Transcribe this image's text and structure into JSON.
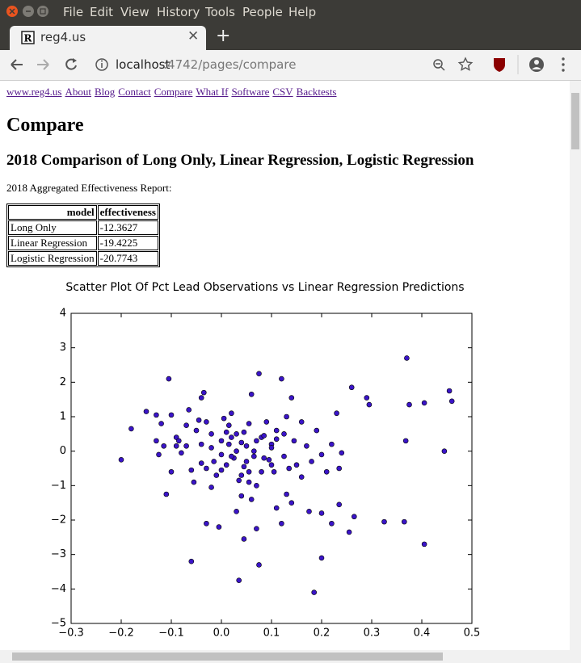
{
  "browser": {
    "menu": [
      "File",
      "Edit",
      "View",
      "History",
      "Tools",
      "People",
      "Help"
    ],
    "tab_title": "reg4.us",
    "url_host": "localhost",
    "url_path": ":4742/pages/compare"
  },
  "nav": [
    "www.reg4.us",
    "About",
    "Blog",
    "Contact",
    "Compare",
    "What If",
    "Software",
    "CSV",
    "Backtests"
  ],
  "heading": "Compare",
  "subheading": "2018 Comparison of Long Only, Linear Regression, Logistic Regression",
  "report_label": "2018 Aggregated Effectiveness Report:",
  "table": {
    "header": [
      "model",
      "effectiveness"
    ],
    "rows": [
      [
        "Long Only",
        -12.3627
      ],
      [
        "Linear Regression",
        -19.4225
      ],
      [
        "Logistic Regression",
        -20.7743
      ]
    ]
  },
  "chart_data": {
    "type": "scatter",
    "title": "Scatter Plot Of Pct Lead Observations vs Linear Regression Predictions",
    "color": "#3a14c8",
    "x": [
      -0.2,
      -0.18,
      -0.15,
      -0.13,
      -0.12,
      -0.105,
      -0.1,
      -0.11,
      -0.1,
      -0.09,
      -0.08,
      -0.07,
      -0.065,
      -0.06,
      -0.055,
      -0.05,
      -0.045,
      -0.04,
      -0.035,
      -0.03,
      -0.03,
      -0.02,
      -0.02,
      -0.015,
      -0.01,
      0,
      0,
      0.005,
      0.01,
      0.015,
      0.02,
      0.025,
      0.03,
      0.035,
      0.04,
      0.045,
      0.05,
      0.055,
      0.06,
      0.065,
      0.07,
      0.075,
      0.08,
      0.085,
      0.09,
      0.1,
      0.105,
      0.11,
      0.12,
      0.125,
      0.13,
      0.14,
      0.145,
      0.15,
      0.16,
      0.17,
      0.18,
      0.19,
      0.2,
      0.21,
      0.22,
      0.23,
      0.24,
      0.26,
      0.29,
      0.295,
      0.37,
      0.375,
      0.405,
      0.455,
      0.46,
      0.445,
      0.368,
      0.235,
      -0.06,
      -0.03,
      -0.005,
      0.035,
      0.045,
      0.075,
      0.07,
      0.11,
      0.12,
      0.13,
      0.14,
      0.175,
      0.2,
      0.22,
      0.235,
      0.255,
      0.265,
      0.325,
      0.365,
      0.405,
      0.2,
      0.185,
      0.03,
      0.04,
      0.06,
      0.055,
      -0.02,
      -0.09,
      -0.125,
      -0.13,
      -0.115,
      -0.085,
      -0.07,
      -0.04,
      0.01,
      0.02,
      0.045,
      0.07,
      0.085,
      0.095,
      0.11,
      0.125,
      0.135,
      0.16,
      0.04,
      0,
      -0.04,
      0.015,
      0.055,
      0.08,
      0.1,
      0.1,
      0.02,
      0.03,
      0.05,
      0.065
    ],
    "values": [
      -0.25,
      0.65,
      1.15,
      1.05,
      0.8,
      2.1,
      1.05,
      -1.25,
      -0.6,
      0.4,
      -0.05,
      0.75,
      1.2,
      -0.55,
      -0.9,
      0.6,
      0.9,
      1.55,
      1.7,
      0.85,
      -0.5,
      0.5,
      0.1,
      -0.3,
      -0.7,
      0.3,
      -0.1,
      0.95,
      -0.4,
      0.2,
      1.1,
      -0.2,
      0.5,
      -0.85,
      0.25,
      -0.45,
      0.15,
      -0.6,
      1.65,
      0,
      -1,
      2.25,
      0.4,
      -0.2,
      0.85,
      0.2,
      -0.6,
      0.6,
      2.1,
      -0.15,
      1,
      1.55,
      0.3,
      -0.4,
      0.85,
      0.15,
      -0.3,
      0.6,
      -0.1,
      -0.6,
      0.2,
      1.1,
      -0.05,
      1.85,
      1.55,
      1.35,
      2.7,
      1.35,
      1.4,
      1.75,
      1.45,
      0,
      0.3,
      -0.5,
      -3.2,
      -2.1,
      -2.2,
      -3.75,
      -2.55,
      -3.3,
      -2.25,
      -1.65,
      -2.1,
      -1.25,
      -1.5,
      -1.75,
      -1.8,
      -2.1,
      -1.55,
      -2.35,
      -1.9,
      -2.05,
      -2.05,
      -2.7,
      -3.1,
      -4.1,
      -1.75,
      -1.3,
      -1.4,
      -0.9,
      -1.05,
      0.15,
      -0.1,
      0.3,
      0.15,
      0.3,
      0.15,
      0.2,
      0.55,
      -0.15,
      0.55,
      0.3,
      0.45,
      -0.25,
      0.35,
      0.5,
      -0.5,
      -0.75,
      -0.7,
      -0.55,
      -0.35,
      0.75,
      0.8,
      -0.6,
      -0.4,
      0.1,
      0.4,
      0,
      -0.3,
      -0.15
    ],
    "xlim": [
      -0.3,
      0.5
    ],
    "ylim": [
      -5,
      4
    ],
    "xticks": [
      {
        "value": -0.3,
        "label": "−0.3"
      },
      {
        "value": -0.2,
        "label": "−0.2"
      },
      {
        "value": -0.1,
        "label": "−0.1"
      },
      {
        "value": 0,
        "label": "0.0"
      },
      0.1,
      0.2,
      0.3,
      0.4,
      0.5
    ],
    "yticks": [
      {
        "value": -5,
        "label": "−5"
      },
      {
        "value": -4,
        "label": "−4"
      },
      {
        "value": -3,
        "label": "−3"
      },
      {
        "value": -2,
        "label": "−2"
      },
      {
        "value": -1,
        "label": "−1"
      },
      0,
      1,
      2,
      3,
      4
    ]
  }
}
